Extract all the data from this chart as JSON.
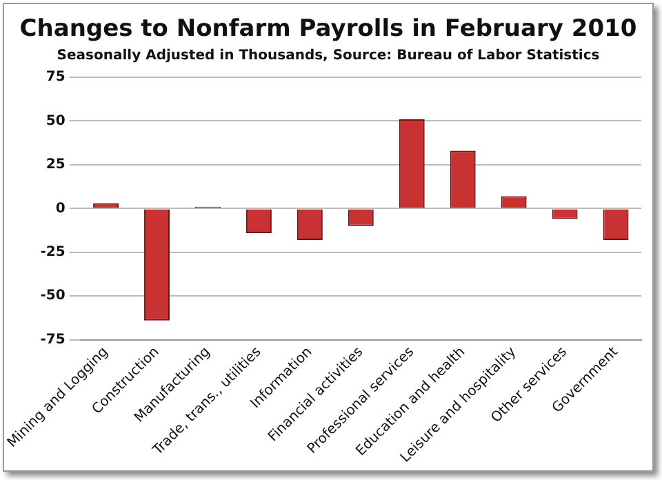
{
  "chart_data": {
    "type": "bar",
    "title": "Changes to Nonfarm Payrolls in February 2010",
    "subtitle": "Seasonally Adjusted in Thousands,  Source: Bureau of Labor Statistics",
    "categories": [
      "Mining and Logging",
      "Construction",
      "Manufacturing",
      "Trade, trans., utilities",
      "Information",
      "Financial activities",
      "Professional services",
      "Education and health",
      "Leisure and hospitality",
      "Other services",
      "Government"
    ],
    "values": [
      3,
      -64,
      1,
      -14,
      -18,
      -10,
      51,
      33,
      7,
      -6,
      -18
    ],
    "color": "#c83232",
    "ylim": [
      -75,
      75
    ],
    "yticks": [
      -75,
      -50,
      -25,
      0,
      25,
      50,
      75
    ],
    "grid": "y"
  }
}
